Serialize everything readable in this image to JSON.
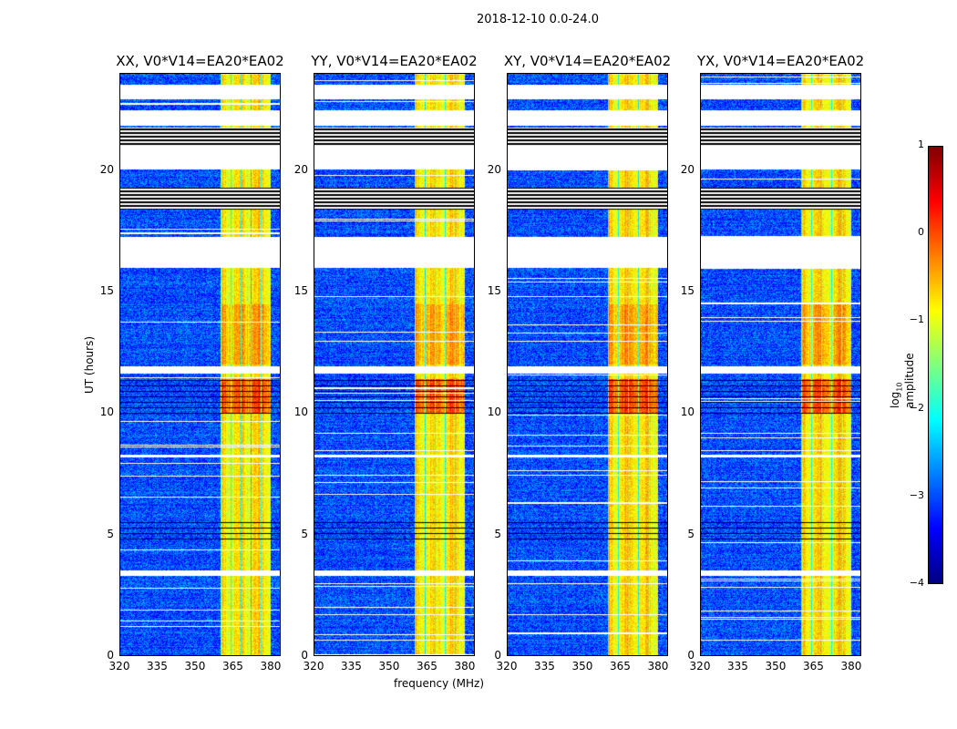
{
  "chart_data": {
    "type": "heatmap",
    "title": "2018-12-10 0.0-24.0",
    "xlabel": "frequency (MHz)",
    "ylabel": "UT (hours)",
    "xlim": [
      320,
      384
    ],
    "ylim": [
      0,
      24
    ],
    "xticks": [
      "320",
      "335",
      "350",
      "365",
      "380"
    ],
    "xtick_values": [
      320,
      335,
      350,
      365,
      380
    ],
    "yticks": [
      "0",
      "5",
      "10",
      "15",
      "20"
    ],
    "ytick_values": [
      0,
      5,
      10,
      15,
      20
    ],
    "panels": [
      {
        "title": "XX, V0*V14=EA20*EA02"
      },
      {
        "title": "YY, V0*V14=EA20*EA02"
      },
      {
        "title": "XY, V0*V14=EA20*EA02"
      },
      {
        "title": "YX, V0*V14=EA20*EA02"
      }
    ],
    "colorbar": {
      "label": "log10 amplitude",
      "colormap": "jet",
      "vmin": -4,
      "vmax": 1,
      "ticks": [
        "1",
        "0",
        "−1",
        "−2",
        "−3",
        "−4"
      ],
      "tick_values": [
        1,
        0,
        -1,
        -2,
        -3,
        -4
      ]
    },
    "bright_band_MHz": [
      360,
      380
    ],
    "background_level": -3,
    "band_level": -0.8,
    "flagged_hours_white": [
      [
        22.95,
        23.55
      ],
      [
        21.87,
        22.5
      ],
      [
        20.07,
        21.0
      ],
      [
        16.0,
        17.27
      ],
      [
        11.66,
        11.96
      ],
      [
        8.2,
        8.3
      ],
      [
        3.3,
        3.5
      ]
    ],
    "flagged_hours_black": [
      [
        21.0,
        21.8
      ],
      [
        18.4,
        19.3
      ]
    ]
  }
}
